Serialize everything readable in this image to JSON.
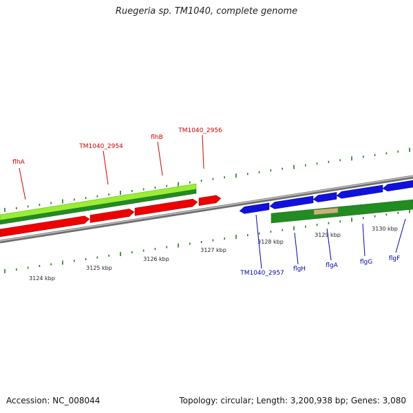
{
  "title": "Ruegeria sp. TM1040, complete genome",
  "footer": {
    "accession": "Accession: NC_008044",
    "summary": "Topology: circular; Length: 3,200,938 bp; Genes: 3,080"
  },
  "colors": {
    "forward_label": "#cc0000",
    "reverse_label": "#0000aa",
    "forward_gene": "#ee0000",
    "reverse_gene": "#1111dd",
    "cds": "#228b22",
    "light_green": "#99ee33",
    "pseudo": "#c9b27a",
    "backbone": "#8c8c8c",
    "tick": "#1a7a1a"
  },
  "ticks": [
    {
      "label": "3124 kbp"
    },
    {
      "label": "3125 kbp"
    },
    {
      "label": "3126 kbp"
    },
    {
      "label": "3127 kbp"
    },
    {
      "label": "3128 kbp"
    },
    {
      "label": "3129 kbp"
    },
    {
      "label": "3130 kbp"
    }
  ],
  "forward_labels": [
    {
      "text": "flhA"
    },
    {
      "text": "TM1040_2954"
    },
    {
      "text": "flhB"
    },
    {
      "text": "TM1040_2956"
    }
  ],
  "reverse_labels": [
    {
      "text": "TM1040_2957"
    },
    {
      "text": "flgH"
    },
    {
      "text": "flgA"
    },
    {
      "text": "flgG"
    },
    {
      "text": "flgF"
    }
  ]
}
